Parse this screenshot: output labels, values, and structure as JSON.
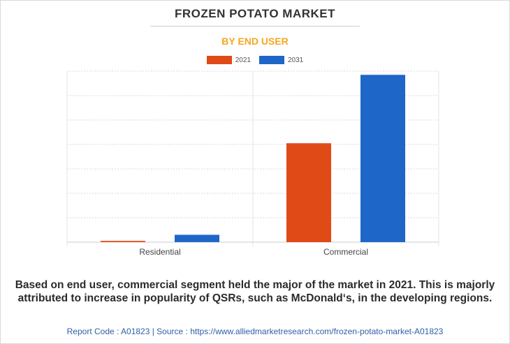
{
  "header": {
    "title": "FROZEN POTATO MARKET",
    "subtitle": "BY END USER"
  },
  "colors": {
    "series_2021": "#e04a17",
    "series_2031": "#1e66c8",
    "subtitle": "#f5a623",
    "footer": "#2f5fa7"
  },
  "chart_data": {
    "type": "bar",
    "categories": [
      "Residential",
      "Commercial"
    ],
    "series": [
      {
        "name": "2021",
        "values": [
          0.5,
          40.5
        ]
      },
      {
        "name": "2031",
        "values": [
          3.0,
          68.5
        ]
      }
    ],
    "ylim": [
      0,
      70
    ],
    "y_gridlines": [
      0,
      10,
      20,
      30,
      40,
      50,
      60,
      70
    ],
    "y_tick_labels_shown": false,
    "grid": true,
    "legend_position": "top-center"
  },
  "caption": "Based on end user, commercial segment held the major of the market in 2021. This is majorly attributed to increase in popularity of QSRs, such as McDonald‘s, in the developing regions.",
  "footer": {
    "text": "Report Code : A01823  |  Source : https://www.alliedmarketresearch.com/frozen-potato-market-A01823"
  }
}
